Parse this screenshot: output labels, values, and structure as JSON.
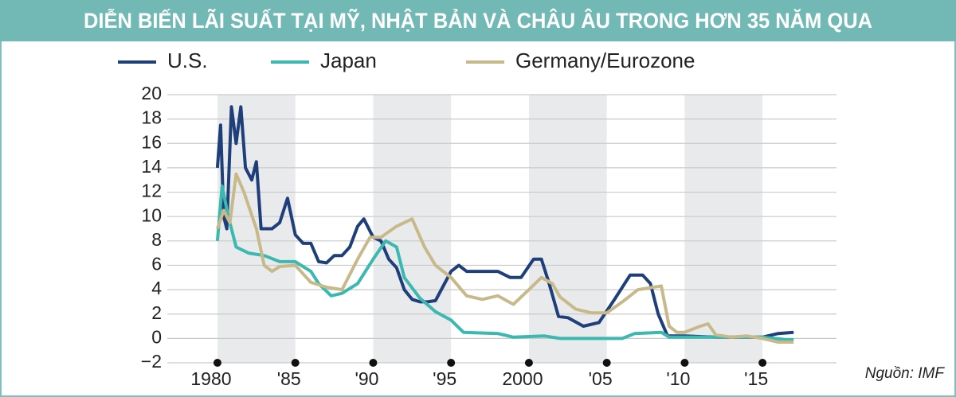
{
  "chart_data": {
    "type": "line",
    "title": "DIỄN BIẾN LÃI SUẤT TẠI MỸ, NHẬT BẢN VÀ CHÂU ÂU TRONG HƠN 35 NĂM QUA",
    "source": "Nguồn: IMF",
    "xlim": [
      1976.78,
      2019.75
    ],
    "ylim": [
      -2,
      20
    ],
    "xticks": [
      1980,
      {
        "value": 1985,
        "label": "'85"
      },
      {
        "value": 1990,
        "label": "'90"
      },
      {
        "value": 1995,
        "label": "'95"
      },
      2000,
      {
        "value": 2005,
        "label": "'05"
      },
      {
        "value": 2010,
        "label": "'10"
      },
      {
        "value": 2015,
        "label": "'15"
      }
    ],
    "yticks": [
      {
        "value": -2,
        "label": "−2"
      },
      0,
      2,
      4,
      6,
      8,
      10,
      12,
      14,
      16,
      18,
      20
    ],
    "grid": true,
    "alternate_shading": true,
    "series": [
      {
        "name": "U.S.",
        "color": "#1f3f7a",
        "x": [
          1980.0,
          1980.2,
          1980.4,
          1980.6,
          1980.9,
          1981.2,
          1981.5,
          1981.8,
          1982.2,
          1982.5,
          1982.8,
          1983.5,
          1984.0,
          1984.5,
          1985.0,
          1985.5,
          1986.0,
          1986.5,
          1987.0,
          1987.5,
          1988.0,
          1988.5,
          1989.0,
          1989.4,
          1990.0,
          1990.5,
          1991.0,
          1991.5,
          1992.0,
          1992.5,
          1993.0,
          1993.5,
          1994.0,
          1994.5,
          1995.0,
          1995.5,
          1996.0,
          1997.0,
          1998.0,
          1998.8,
          1999.5,
          2000.3,
          2000.8,
          2001.3,
          2001.9,
          2002.5,
          2003.5,
          2004.5,
          2005.5,
          2006.5,
          2007.3,
          2007.8,
          2008.3,
          2008.9,
          2010.0,
          2012.0,
          2015.0,
          2016.0,
          2017.0
        ],
        "values": [
          14,
          17.5,
          10,
          9,
          19,
          16,
          19,
          14,
          13,
          14.5,
          9,
          9,
          9.5,
          11.5,
          8.5,
          7.8,
          7.8,
          6.3,
          6.2,
          6.8,
          6.8,
          7.5,
          9.2,
          9.8,
          8.3,
          8,
          6.5,
          5.8,
          4,
          3.2,
          3,
          3,
          3.1,
          4.3,
          5.5,
          6,
          5.5,
          5.5,
          5.5,
          5,
          5,
          6.5,
          6.5,
          4.5,
          1.8,
          1.7,
          1,
          1.3,
          3.2,
          5.2,
          5.2,
          4.5,
          2,
          0.2,
          0.2,
          0.1,
          0.1,
          0.4,
          0.5
        ]
      },
      {
        "name": "Japan",
        "color": "#3bb8b0",
        "x": [
          1980.0,
          1980.3,
          1980.7,
          1981.2,
          1982.0,
          1983.0,
          1984.0,
          1985.0,
          1986.0,
          1986.5,
          1987.3,
          1988.0,
          1989.0,
          1990.0,
          1990.8,
          1991.5,
          1992.0,
          1993.0,
          1994.0,
          1995.0,
          1995.8,
          1998.0,
          1999.0,
          2001.0,
          2002.0,
          2006.0,
          2006.8,
          2008.5,
          2009.0,
          2015.0,
          2016.5,
          2017.0
        ],
        "values": [
          8,
          12.5,
          10,
          7.5,
          7,
          6.8,
          6.3,
          6.3,
          5.5,
          4.5,
          3.5,
          3.7,
          4.5,
          6.5,
          8,
          7.5,
          5,
          3.3,
          2.2,
          1.5,
          0.5,
          0.4,
          0.1,
          0.2,
          0,
          0,
          0.4,
          0.5,
          0.1,
          0.1,
          -0.1,
          -0.1
        ]
      },
      {
        "name": "Germany/Eurozone",
        "color": "#c8b98a",
        "x": [
          1980.0,
          1980.4,
          1980.8,
          1981.2,
          1981.7,
          1982.5,
          1983.0,
          1983.5,
          1984.0,
          1985.0,
          1986.0,
          1987.0,
          1988.0,
          1989.0,
          1989.8,
          1990.5,
          1991.5,
          1992.5,
          1993.3,
          1994.0,
          1995.0,
          1996.0,
          1997.0,
          1998.0,
          1999.0,
          2000.0,
          2000.8,
          2001.5,
          2002.0,
          2003.0,
          2004.0,
          2005.0,
          2006.0,
          2007.0,
          2008.0,
          2008.5,
          2009.0,
          2009.5,
          2010.0,
          2011.0,
          2011.5,
          2012.0,
          2013.0,
          2014.0,
          2015.0,
          2016.0,
          2017.0
        ],
        "values": [
          9,
          10.5,
          9.5,
          13.5,
          12,
          9,
          6,
          5.5,
          5.9,
          6,
          4.6,
          4.2,
          4,
          6.5,
          8.3,
          8.3,
          9.2,
          9.8,
          7.5,
          6,
          5,
          3.5,
          3.2,
          3.5,
          2.8,
          4,
          5,
          4.5,
          3.4,
          2.4,
          2.1,
          2.1,
          3,
          4,
          4.2,
          4.3,
          1,
          0.5,
          0.5,
          1,
          1.2,
          0.3,
          0.1,
          0.2,
          0,
          -0.3,
          -0.3
        ]
      }
    ]
  }
}
